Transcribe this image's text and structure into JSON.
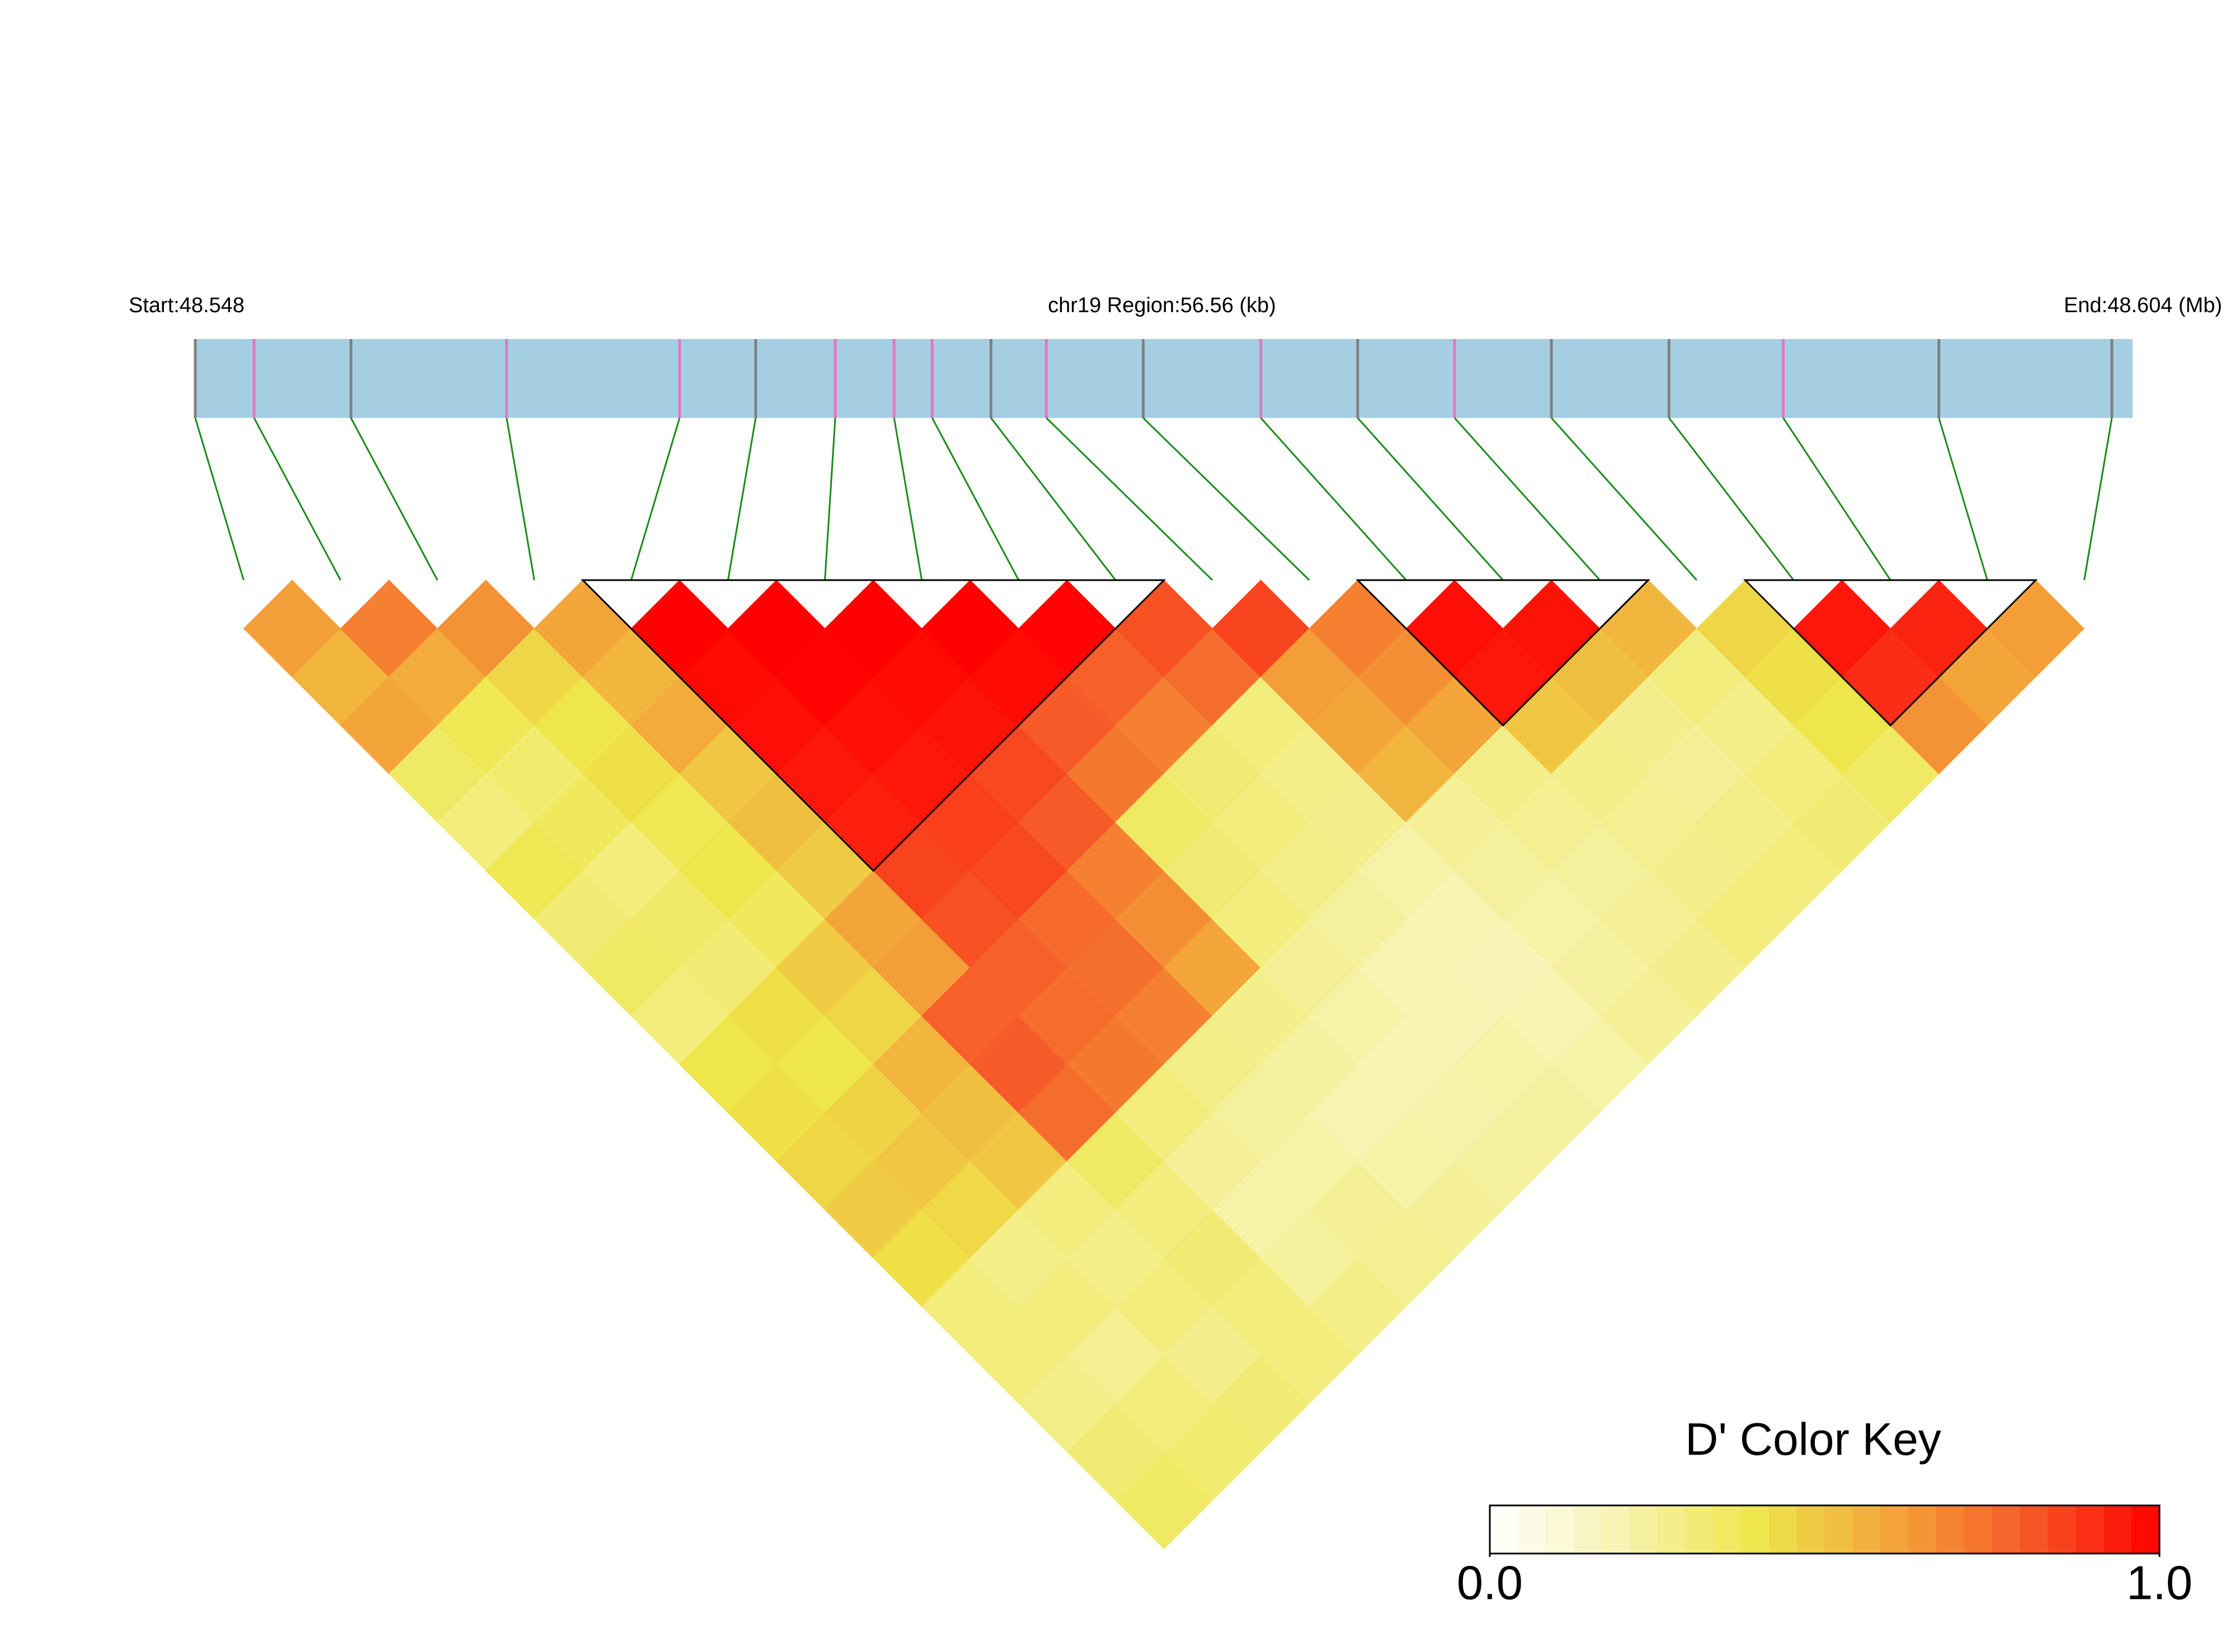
{
  "chart_data": {
    "type": "ld_heatmap",
    "start_label": "Start:48.548",
    "region_label": "chr19 Region:56.56 (kb)",
    "end_label": "End:48.604 (Mb)",
    "xlim": [
      48.548,
      48.604
    ],
    "positions": [
      48.548,
      48.5497,
      48.5525,
      48.557,
      48.562,
      48.5642,
      48.5665,
      48.5682,
      48.5693,
      48.571,
      48.5726,
      48.5754,
      48.5788,
      48.5816,
      48.5844,
      48.5872,
      48.5906,
      48.5939,
      48.5984,
      48.6034
    ],
    "snp_colors": [
      "#808080",
      "#e377c2",
      "#808080",
      "#e377c2",
      "#e377c2",
      "#808080",
      "#e377c2",
      "#e377c2",
      "#e377c2",
      "#808080",
      "#e377c2",
      "#808080",
      "#e377c2",
      "#808080",
      "#e377c2",
      "#808080",
      "#808080",
      "#e377c2",
      "#808080",
      "#808080"
    ],
    "track_color": "#a6cee3",
    "connector_color": "#1a8a1a",
    "values": [
      [
        0.62,
        0.55,
        0.6,
        0.35,
        0.3,
        0.38,
        0.32,
        0.35,
        0.3,
        0.4,
        0.42,
        0.45,
        0.48,
        0.42,
        0.3,
        0.3,
        0.28,
        0.32,
        0.35
      ],
      [
        0.7,
        0.58,
        0.38,
        0.33,
        0.36,
        0.3,
        0.34,
        0.32,
        0.42,
        0.4,
        0.46,
        0.5,
        0.44,
        0.28,
        0.3,
        0.26,
        0.3,
        0.33
      ],
      [
        0.65,
        0.45,
        0.4,
        0.42,
        0.38,
        0.4,
        0.36,
        0.48,
        0.45,
        0.55,
        0.52,
        0.5,
        0.3,
        0.28,
        0.3,
        0.27,
        0.32
      ],
      [
        0.6,
        0.55,
        0.58,
        0.5,
        0.52,
        0.48,
        0.6,
        0.62,
        0.78,
        0.8,
        0.75,
        0.35,
        0.3,
        0.32,
        0.3,
        0.3
      ],
      [
        1,
        0.98,
        0.97,
        0.95,
        0.93,
        0.85,
        0.82,
        0.78,
        0.75,
        0.72,
        0.3,
        0.25,
        0.22,
        0.24,
        0.28
      ],
      [
        1,
        0.99,
        0.97,
        0.95,
        0.86,
        0.84,
        0.76,
        0.74,
        0.7,
        0.28,
        0.24,
        0.22,
        0.25,
        0.26
      ],
      [
        1,
        0.98,
        0.96,
        0.84,
        0.8,
        0.7,
        0.66,
        0.6,
        0.27,
        0.23,
        0.2,
        0.22,
        0.25
      ],
      [
        1,
        0.98,
        0.8,
        0.72,
        0.35,
        0.32,
        0.3,
        0.25,
        0.22,
        0.2,
        0.21,
        0.24
      ],
      [
        0.99,
        0.78,
        0.7,
        0.32,
        0.3,
        0.28,
        0.24,
        0.2,
        0.19,
        0.22,
        0.23
      ],
      [
        0.82,
        0.75,
        0.3,
        0.28,
        0.27,
        0.22,
        0.2,
        0.18,
        0.2,
        0.22
      ],
      [
        0.85,
        0.62,
        0.6,
        0.55,
        0.25,
        0.24,
        0.22,
        0.23,
        0.25
      ],
      [
        0.7,
        0.66,
        0.6,
        0.28,
        0.26,
        0.24,
        0.25,
        0.27
      ],
      [
        0.97,
        0.95,
        0.5,
        0.28,
        0.26,
        0.27,
        0.3
      ],
      [
        0.96,
        0.52,
        0.27,
        0.25,
        0.28,
        0.3
      ],
      [
        0.55,
        0.3,
        0.28,
        0.3,
        0.32
      ],
      [
        0.45,
        0.42,
        0.4,
        0.35
      ],
      [
        0.95,
        0.9,
        0.65
      ],
      [
        0.92,
        0.6
      ],
      [
        0.62
      ]
    ],
    "blocks": [
      [
        4,
        9
      ],
      [
        12,
        14
      ],
      [
        16,
        18
      ]
    ],
    "color_key": {
      "title": "D' Color Key",
      "clim": [
        0,
        1
      ],
      "ticks": [
        {
          "value": 0,
          "label": "0.0"
        },
        {
          "value": 1,
          "label": "1.0"
        }
      ],
      "colors": [
        "#ffffff",
        "#f7f3b0",
        "#eee64a",
        "#f3a53a",
        "#f65a28",
        "#ff0000"
      ]
    }
  }
}
